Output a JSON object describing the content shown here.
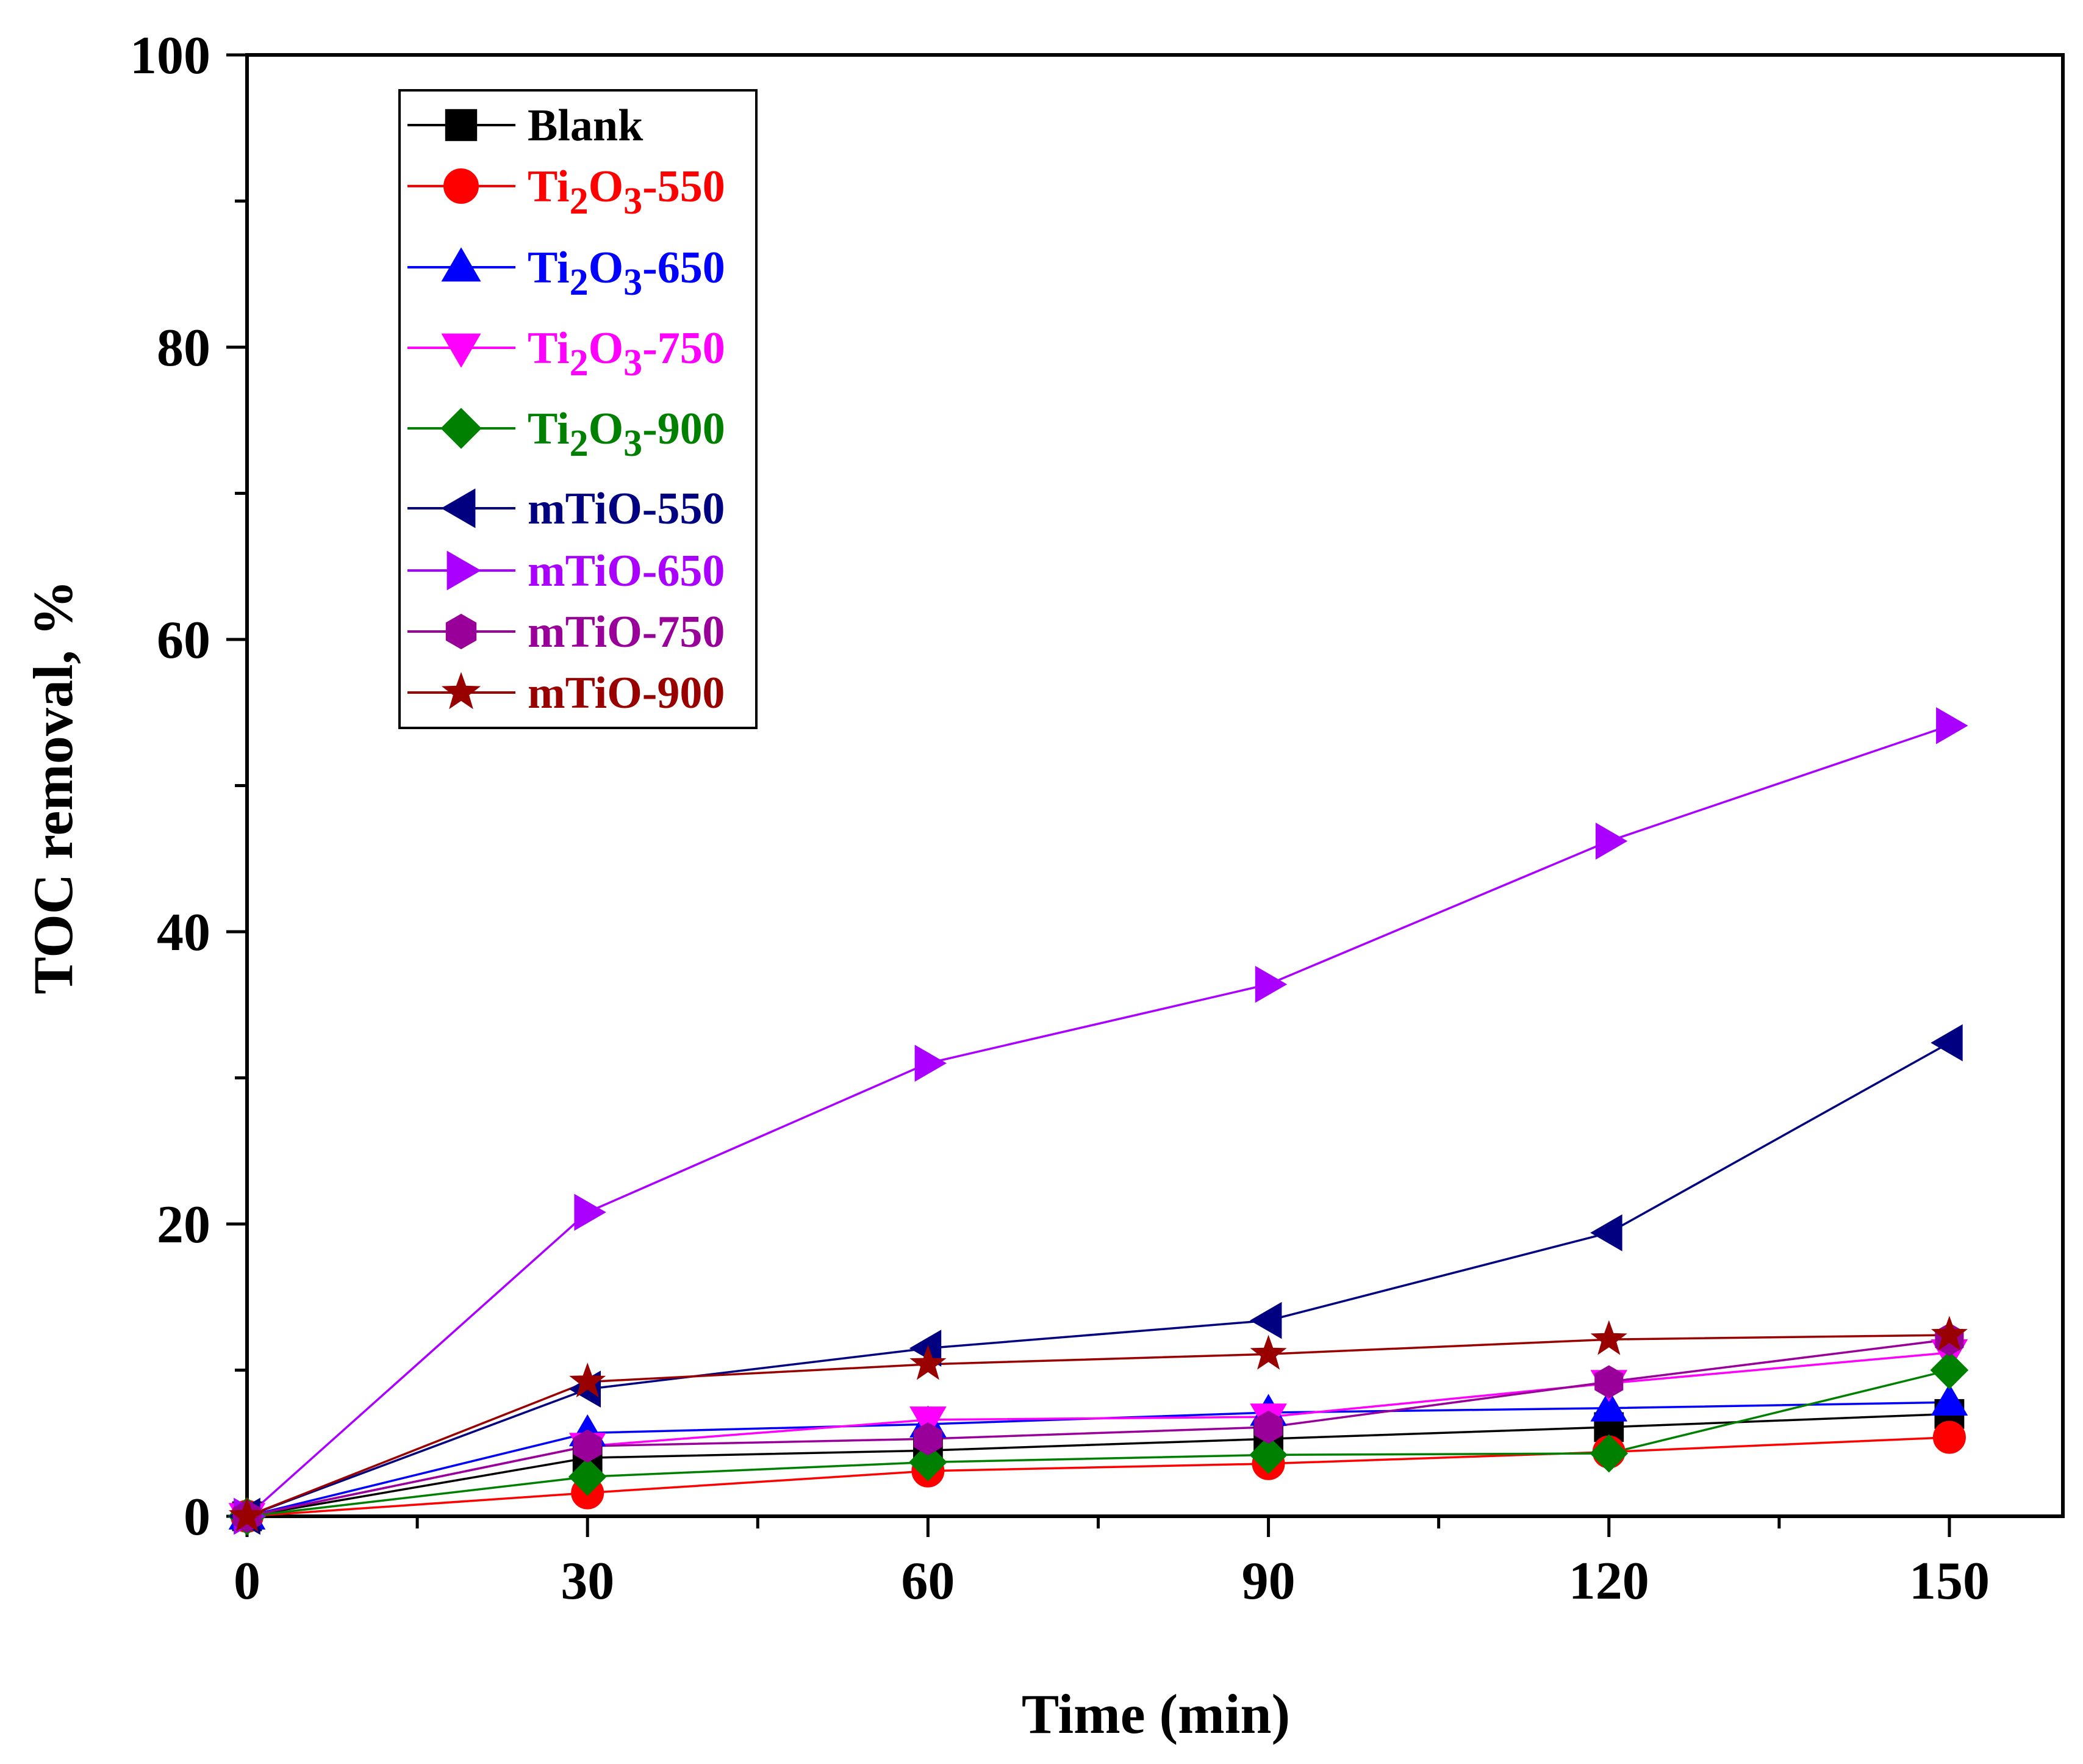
{
  "chart_data": {
    "type": "line",
    "title": "",
    "xlabel": "Time (min)",
    "ylabel": "TOC removal, %",
    "xlim": [
      0,
      160
    ],
    "ylim": [
      0,
      100
    ],
    "xticks": [
      0,
      30,
      60,
      90,
      120,
      150
    ],
    "yticks": [
      0,
      20,
      40,
      60,
      80,
      100
    ],
    "x": [
      0,
      30,
      60,
      90,
      120,
      150
    ],
    "legend_position": "top-left",
    "series": [
      {
        "name": "Blank",
        "base": "Blank",
        "sub": "",
        "rest": "",
        "color": "#000000",
        "marker": "square",
        "values": [
          0,
          4,
          4.5,
          5.3,
          6.1,
          7
        ]
      },
      {
        "name": "Ti2O3-550",
        "base": "Ti",
        "sub": "2",
        "mid": "O",
        "sub2": "3",
        "rest": "-550",
        "color": "#ff0000",
        "marker": "circle",
        "values": [
          0,
          1.6,
          3.1,
          3.6,
          4.4,
          5.4
        ]
      },
      {
        "name": "Ti2O3-650",
        "base": "Ti",
        "sub": "2",
        "mid": "O",
        "sub2": "3",
        "rest": "-650",
        "color": "#0000ff",
        "marker": "triangle-up",
        "values": [
          0,
          5.7,
          6.3,
          7.1,
          7.4,
          7.8
        ]
      },
      {
        "name": "Ti2O3-750",
        "base": "Ti",
        "sub": "2",
        "mid": "O",
        "sub2": "3",
        "rest": "-750",
        "color": "#ff00ff",
        "marker": "triangle-down",
        "values": [
          0,
          4.8,
          6.6,
          6.8,
          9.1,
          11.2
        ]
      },
      {
        "name": "Ti2O3-900",
        "base": "Ti",
        "sub": "2",
        "mid": "O",
        "sub2": "3",
        "rest": "-900",
        "color": "#008000",
        "marker": "diamond",
        "values": [
          0,
          2.7,
          3.7,
          4.2,
          4.3,
          10
        ]
      },
      {
        "name": "mTiO-550",
        "base": "mTiO-550",
        "sub": "",
        "rest": "",
        "color": "#000080",
        "marker": "triangle-left",
        "values": [
          0,
          8.7,
          11.5,
          13.4,
          19.4,
          32.4
        ]
      },
      {
        "name": "mTiO-650",
        "base": "mTiO-650",
        "sub": "",
        "rest": "",
        "color": "#aa00ff",
        "marker": "triangle-right",
        "values": [
          0,
          20.8,
          31,
          36.4,
          46.2,
          54.1
        ]
      },
      {
        "name": "mTiO-750",
        "base": "mTiO-750",
        "sub": "",
        "rest": "",
        "color": "#990099",
        "marker": "hexagon",
        "values": [
          0,
          4.8,
          5.3,
          6.1,
          9.2,
          12.1
        ]
      },
      {
        "name": "mTiO-900",
        "base": "mTiO-900",
        "sub": "",
        "rest": "",
        "color": "#990000",
        "marker": "star",
        "values": [
          0,
          9.2,
          10.4,
          11.1,
          12.1,
          12.4
        ]
      }
    ]
  }
}
